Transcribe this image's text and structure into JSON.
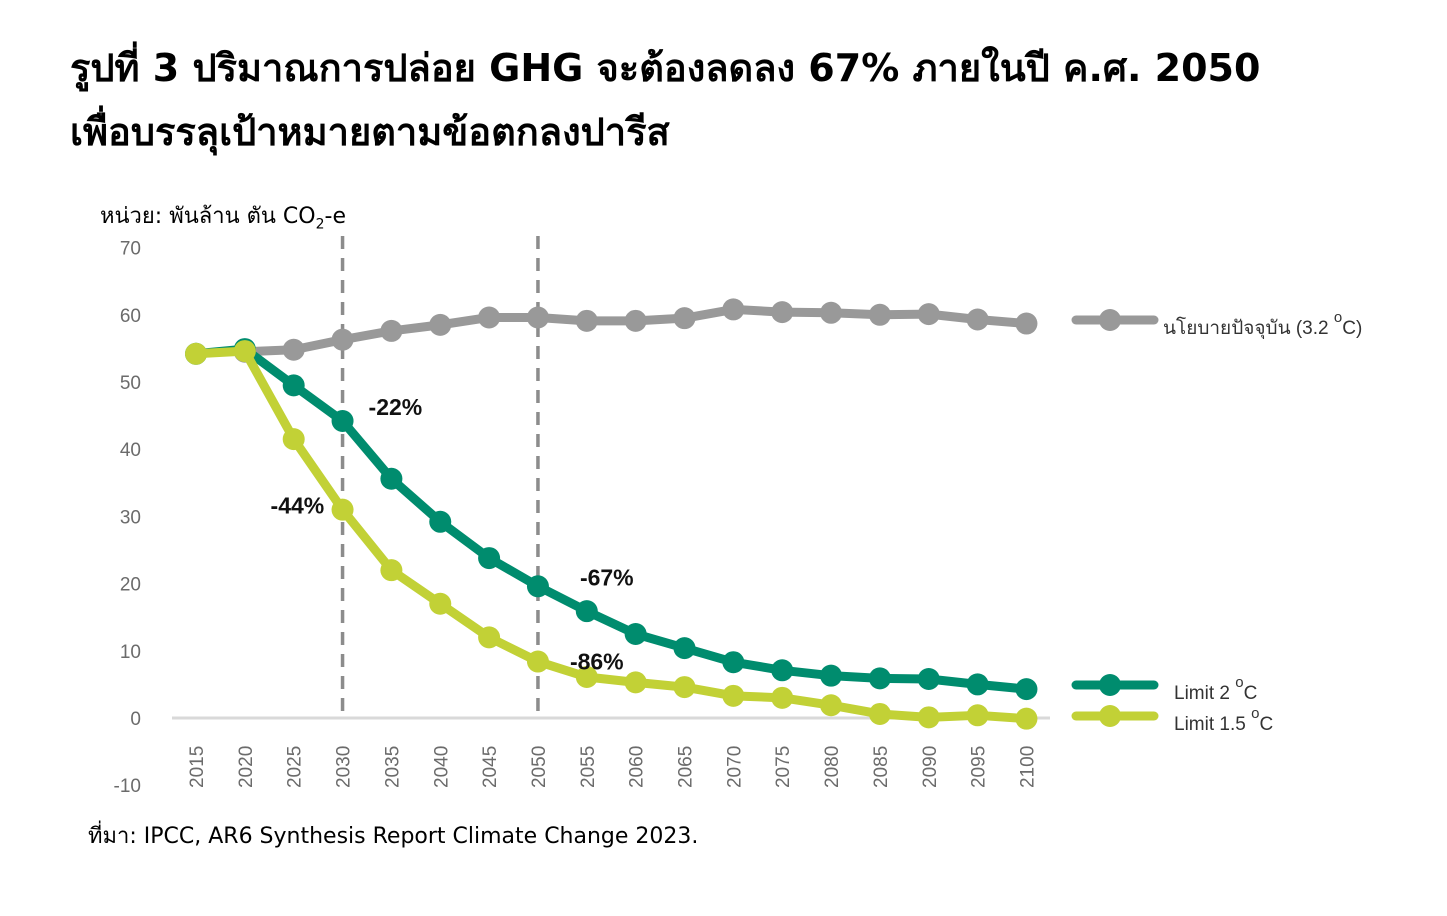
{
  "title": {
    "line1": "รูปที่ 3 ปริมาณการปล่อย GHG จะต้องลดลง 67% ภายในปี ค.ศ. 2050",
    "line2": "เพื่อบรรลุเป้าหมายตามข้อตกลงปารีส"
  },
  "unit_label": {
    "prefix": "หน่วย: พันล้าน ตัน CO",
    "sub": "2",
    "suffix": "-e"
  },
  "source": "ที่มา: IPCC, AR6 Synthesis Report Climate Change 2023.",
  "chart_data": {
    "type": "line",
    "x": [
      2015,
      2020,
      2025,
      2030,
      2035,
      2040,
      2045,
      2050,
      2055,
      2060,
      2065,
      2070,
      2075,
      2080,
      2085,
      2090,
      2095,
      2100
    ],
    "ylim": [
      -10,
      70
    ],
    "yticks": [
      70,
      60,
      50,
      40,
      30,
      20,
      10,
      0,
      -10
    ],
    "grid": false,
    "legend_position": "right",
    "reference_lines_x": [
      2030,
      2050
    ],
    "series": [
      {
        "key": "current",
        "name": "นโยบายปัจจุบัน (3.2 °C)",
        "name_main": "นโยบายปัจจุบัน (3.2 ",
        "name_sup": "o",
        "name_tail": "C)",
        "color": "#999999",
        "values": [
          null,
          54.5,
          54.8,
          56.3,
          57.6,
          58.5,
          59.6,
          59.6,
          59.1,
          59.1,
          59.5,
          60.8,
          60.4,
          60.3,
          60.0,
          60.1,
          59.3,
          58.7
        ]
      },
      {
        "key": "limit2",
        "name": "Limit 2 °C",
        "name_main": "Limit 2 ",
        "name_sup": "o",
        "name_tail": "C",
        "color": "#008c6e",
        "values": [
          54.2,
          54.9,
          49.5,
          44.2,
          35.6,
          29.2,
          23.8,
          19.6,
          15.9,
          12.5,
          10.4,
          8.3,
          7.1,
          6.3,
          5.9,
          5.8,
          5.0,
          4.3
        ]
      },
      {
        "key": "limit15",
        "name": "Limit 1.5 °C",
        "name_main": "Limit 1.5 ",
        "name_sup": "o",
        "name_tail": "C",
        "color": "#c2d136",
        "values": [
          54.2,
          54.6,
          41.5,
          31.0,
          22.0,
          17.0,
          12.0,
          8.4,
          6.1,
          5.3,
          4.6,
          3.3,
          3.0,
          1.9,
          0.6,
          0.1,
          0.4,
          -0.1
        ]
      }
    ],
    "annotations": [
      {
        "text": "-22%",
        "series": "limit2",
        "year": 2030
      },
      {
        "text": "-44%",
        "series": "limit15",
        "year": 2030
      },
      {
        "text": "-67%",
        "series": "limit2",
        "year": 2050
      },
      {
        "text": "-86%",
        "series": "limit15",
        "year": 2050
      }
    ]
  }
}
